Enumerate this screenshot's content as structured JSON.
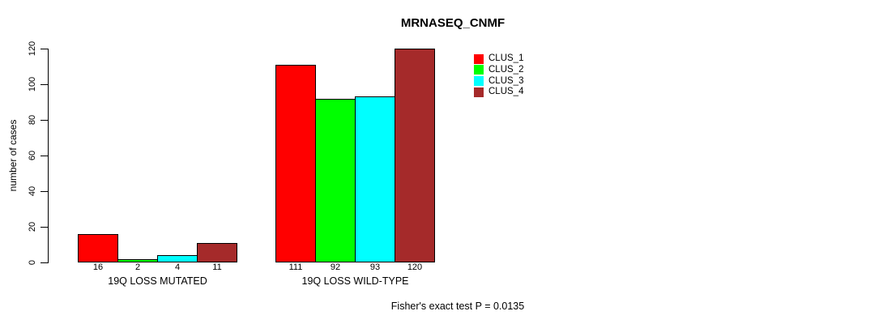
{
  "chart_data": {
    "type": "bar",
    "title": "MRNASEQ_CNMF",
    "ylabel": "number of cases",
    "xlabel": "",
    "categories": [
      "19Q LOSS MUTATED",
      "19Q LOSS WILD-TYPE"
    ],
    "series": [
      {
        "name": "CLUS_1",
        "color": "#ff0000",
        "values": [
          16,
          111
        ]
      },
      {
        "name": "CLUS_2",
        "color": "#00ff00",
        "values": [
          2,
          92
        ]
      },
      {
        "name": "CLUS_3",
        "color": "#00ffff",
        "values": [
          4,
          93
        ]
      },
      {
        "name": "CLUS_4",
        "color": "#a52a2a",
        "values": [
          11,
          120
        ]
      }
    ],
    "ylim": [
      0,
      120
    ],
    "yticks": [
      0,
      20,
      40,
      60,
      80,
      100,
      120
    ],
    "bar_value_labels": true,
    "grid": false,
    "legend_position": "top-right",
    "annotation": "Fisher's exact test P = 0.0135"
  }
}
